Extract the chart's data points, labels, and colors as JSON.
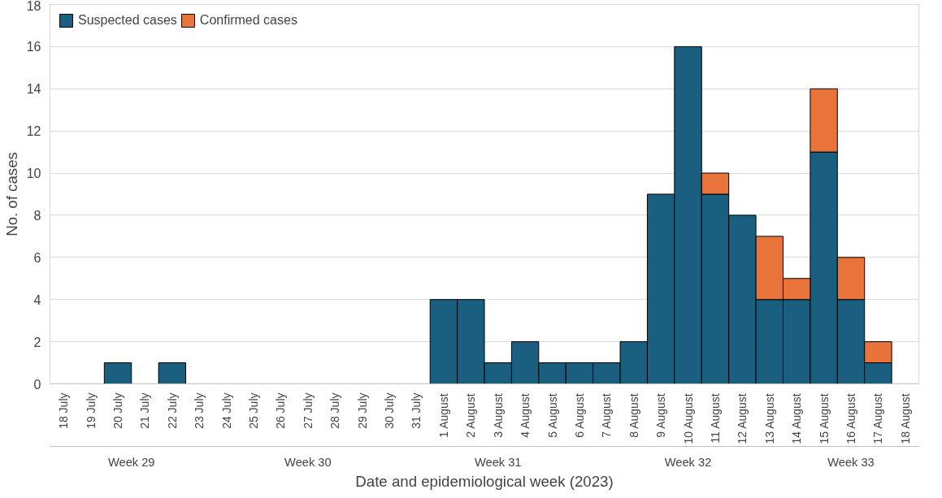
{
  "chart_data": {
    "type": "bar",
    "stacked": true,
    "xlabel": "Date and epidemiological week (2023)",
    "ylabel": "No. of cases",
    "categories": [
      "18 July",
      "19 July",
      "20 July",
      "21 July",
      "22 July",
      "23 July",
      "24 July",
      "25 July",
      "26 July",
      "27 July",
      "28 July",
      "29 July",
      "30 July",
      "31 July",
      "1 August",
      "2 August",
      "3 August",
      "4 August",
      "5 August",
      "6 August",
      "7 August",
      "8 August",
      "9 August",
      "10 August",
      "11 August",
      "12 August",
      "13 August",
      "14 August",
      "15 August",
      "16 August",
      "17 August",
      "18 August"
    ],
    "series": [
      {
        "name": "Suspected cases",
        "color": "#1a5e80",
        "values": [
          null,
          null,
          1,
          null,
          1,
          null,
          null,
          null,
          null,
          null,
          null,
          null,
          null,
          null,
          4,
          4,
          1,
          2,
          1,
          1,
          1,
          2,
          9,
          16,
          9,
          8,
          4,
          4,
          11,
          4,
          1,
          null
        ]
      },
      {
        "name": "Confirmed cases",
        "color": "#e8743b",
        "values": [
          null,
          null,
          null,
          null,
          null,
          null,
          null,
          null,
          null,
          null,
          null,
          null,
          null,
          null,
          null,
          null,
          null,
          null,
          null,
          null,
          null,
          null,
          null,
          null,
          1,
          null,
          3,
          1,
          3,
          2,
          1,
          null
        ]
      }
    ],
    "annotations": [
      "Week 29",
      "Week 30",
      "Week 31",
      "Week 32",
      "Week 33"
    ],
    "ylim": [
      0,
      18
    ],
    "yticks": [
      0,
      2,
      4,
      6,
      8,
      10,
      12,
      14,
      16,
      18
    ],
    "grid": "y",
    "legend": "top left"
  }
}
